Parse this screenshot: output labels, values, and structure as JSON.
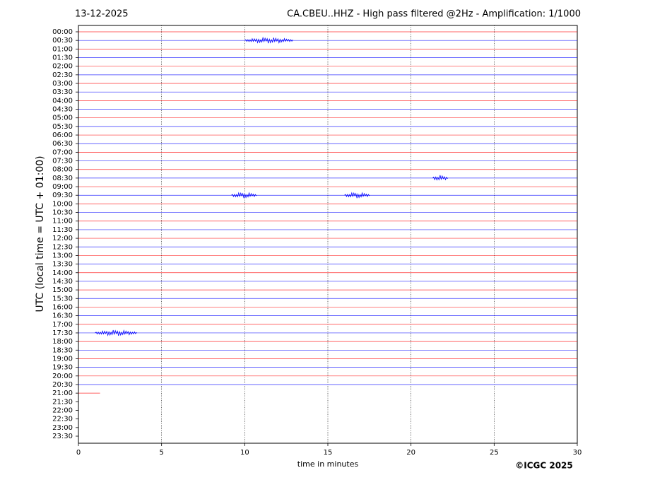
{
  "chart_data": {
    "type": "helicorder",
    "date": "13-12-2025",
    "title": "CA.CBEU..HHZ - High pass filtered @2Hz - Amplification: 1/1000",
    "y_label": "UTC (local time = UTC + 01:00)",
    "x_label": "time in minutes",
    "credit": "©ICGC 2025",
    "categories": [
      "00:00",
      "00:30",
      "01:00",
      "01:30",
      "02:00",
      "02:30",
      "03:00",
      "03:30",
      "04:00",
      "04:30",
      "05:00",
      "05:30",
      "06:00",
      "06:30",
      "07:00",
      "07:30",
      "08:00",
      "08:30",
      "09:00",
      "09:30",
      "10:00",
      "10:30",
      "11:00",
      "11:30",
      "12:00",
      "12:30",
      "13:00",
      "13:30",
      "14:00",
      "14:30",
      "15:00",
      "15:30",
      "16:00",
      "16:30",
      "17:00",
      "17:30",
      "18:00",
      "18:30",
      "19:00",
      "19:30",
      "20:00",
      "20:30",
      "21:00",
      "21:30",
      "22:00",
      "22:30",
      "23:00",
      "23:30"
    ],
    "trace_end": [
      30,
      30,
      30,
      30,
      30,
      30,
      30,
      30,
      30,
      30,
      30,
      30,
      30,
      30,
      30,
      30,
      30,
      30,
      30,
      30,
      30,
      30,
      30,
      30,
      30,
      30,
      30,
      30,
      30,
      30,
      30,
      30,
      30,
      30,
      30,
      30,
      30,
      30,
      30,
      30,
      30,
      30,
      1.3,
      null,
      null,
      null,
      null,
      null
    ],
    "colors": [
      "#ff0000",
      "#0000ff"
    ],
    "bursts": [
      {
        "row": 1,
        "x": [
          10,
          12.9
        ]
      },
      {
        "row": 17,
        "x": [
          21.3,
          22.2
        ]
      },
      {
        "row": 19,
        "x": [
          9.2,
          10.7
        ]
      },
      {
        "row": 19,
        "x": [
          16,
          17.5
        ]
      },
      {
        "row": 35,
        "x": [
          1,
          3.5
        ]
      }
    ],
    "xlim": [
      0,
      30
    ],
    "xticks": [
      0,
      5,
      10,
      15,
      20,
      25,
      30
    ],
    "grid": true
  }
}
